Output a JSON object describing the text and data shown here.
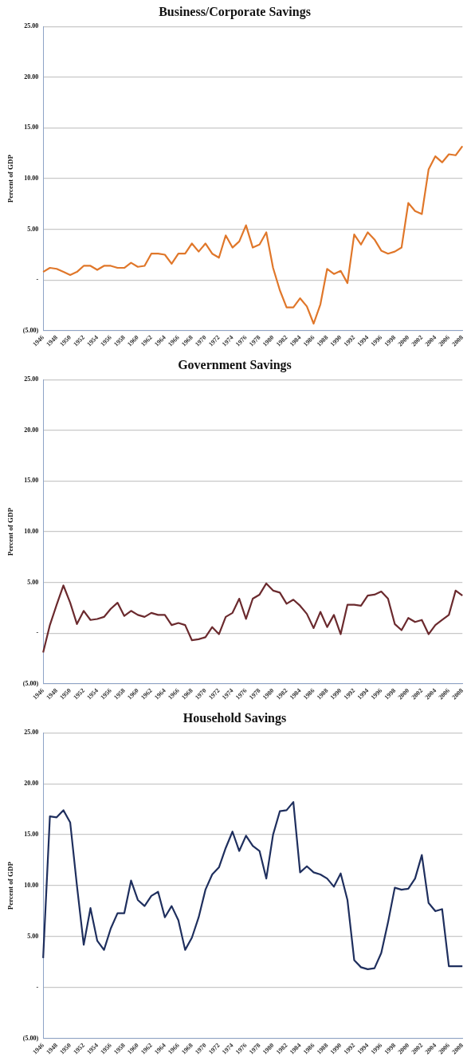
{
  "chart_data": [
    {
      "type": "line",
      "title": "Business/Corporate Savings",
      "ylabel": "Percent of GDP",
      "categories": [
        "1946",
        null,
        "1948",
        null,
        "1950",
        null,
        "1952",
        null,
        "1954",
        null,
        "1956",
        null,
        "1958",
        null,
        "1960",
        null,
        "1962",
        null,
        "1964",
        null,
        "1966",
        null,
        "1968",
        null,
        "1970",
        null,
        "1972",
        null,
        "1974",
        null,
        "1976",
        null,
        "1978",
        null,
        "1980",
        null,
        "1982",
        null,
        "1984",
        null,
        "1986",
        null,
        "1988",
        null,
        "1990",
        null,
        "1992",
        null,
        "1994",
        null,
        "1996",
        null,
        "1998",
        null,
        "2000",
        null,
        "2002",
        null,
        "2004",
        null,
        "2006",
        null,
        "2008"
      ],
      "series": [
        {
          "color": "#e0772a",
          "values": [
            0.8,
            1.2,
            1.1,
            0.8,
            0.5,
            0.8,
            1.4,
            1.4,
            1.0,
            1.4,
            1.4,
            1.2,
            1.2,
            1.7,
            1.3,
            1.4,
            2.6,
            2.6,
            2.5,
            1.6,
            2.6,
            2.6,
            3.6,
            2.8,
            3.6,
            2.6,
            2.2,
            4.4,
            3.2,
            3.8,
            5.4,
            3.2,
            3.5,
            4.7,
            1.2,
            -1.0,
            -2.7,
            -2.7,
            -1.8,
            -2.6,
            -4.3,
            -2.4,
            1.1,
            0.6,
            0.9,
            -0.3,
            4.5,
            3.5,
            4.7,
            4.0,
            2.9,
            2.6,
            2.8,
            3.2,
            7.6,
            6.8,
            6.5,
            10.9,
            12.2,
            11.6,
            12.4,
            12.3,
            13.2
          ]
        }
      ],
      "ylim": [
        -5,
        25
      ],
      "yticks": [
        {
          "value": -5,
          "label": "(5.00)"
        },
        {
          "value": 0,
          "label": "-"
        },
        {
          "value": 5,
          "label": "5.00"
        },
        {
          "value": 10,
          "label": "10.00"
        },
        {
          "value": 15,
          "label": "15.00"
        },
        {
          "value": 20,
          "label": "20.00"
        },
        {
          "value": 25,
          "label": "25.00"
        }
      ],
      "grid": "y",
      "legend": false,
      "marker": "none",
      "line_style": "solid"
    },
    {
      "type": "line",
      "title": "Government Savings",
      "ylabel": "Percent of GDP",
      "categories": [
        "1946",
        null,
        "1948",
        null,
        "1950",
        null,
        "1952",
        null,
        "1954",
        null,
        "1956",
        null,
        "1958",
        null,
        "1960",
        null,
        "1962",
        null,
        "1964",
        null,
        "1966",
        null,
        "1968",
        null,
        "1970",
        null,
        "1972",
        null,
        "1974",
        null,
        "1976",
        null,
        "1978",
        null,
        "1980",
        null,
        "1982",
        null,
        "1984",
        null,
        "1986",
        null,
        "1988",
        null,
        "1990",
        null,
        "1992",
        null,
        "1994",
        null,
        "1996",
        null,
        "1998",
        null,
        "2000",
        null,
        "2002",
        null,
        "2004",
        null,
        "2006",
        null,
        "2008"
      ],
      "series": [
        {
          "color": "#6b2a2e",
          "values": [
            -1.9,
            0.8,
            2.8,
            4.7,
            3.0,
            0.9,
            2.2,
            1.3,
            1.4,
            1.6,
            2.4,
            3.0,
            1.7,
            2.2,
            1.8,
            1.6,
            2.0,
            1.8,
            1.8,
            0.8,
            1.0,
            0.8,
            -0.7,
            -0.6,
            -0.4,
            0.6,
            -0.1,
            1.6,
            2.0,
            3.4,
            1.4,
            3.4,
            3.8,
            4.9,
            4.2,
            4.0,
            2.9,
            3.3,
            2.7,
            1.9,
            0.5,
            2.1,
            0.6,
            1.8,
            -0.1,
            2.8,
            2.8,
            2.7,
            3.7,
            3.8,
            4.1,
            3.4,
            0.9,
            0.3,
            1.5,
            1.1,
            1.3,
            -0.1,
            0.8,
            1.3,
            1.8,
            4.2,
            3.7
          ]
        }
      ],
      "ylim": [
        -5,
        25
      ],
      "yticks": [
        {
          "value": -5,
          "label": "(5.00)"
        },
        {
          "value": 0,
          "label": "-"
        },
        {
          "value": 5,
          "label": "5.00"
        },
        {
          "value": 10,
          "label": "10.00"
        },
        {
          "value": 15,
          "label": "15.00"
        },
        {
          "value": 20,
          "label": "20.00"
        },
        {
          "value": 25,
          "label": "25.00"
        }
      ],
      "grid": "y",
      "legend": false,
      "marker": "none",
      "line_style": "solid"
    },
    {
      "type": "line",
      "title": "Household Savings",
      "ylabel": "Percent of GDP",
      "categories": [
        "1946",
        null,
        "1948",
        null,
        "1950",
        null,
        "1952",
        null,
        "1954",
        null,
        "1956",
        null,
        "1958",
        null,
        "1960",
        null,
        "1962",
        null,
        "1964",
        null,
        "1966",
        null,
        "1968",
        null,
        "1970",
        null,
        "1972",
        null,
        "1974",
        null,
        "1976",
        null,
        "1978",
        null,
        "1980",
        null,
        "1982",
        null,
        "1984",
        null,
        "1986",
        null,
        "1988",
        null,
        "1990",
        null,
        "1992",
        null,
        "1994",
        null,
        "1996",
        null,
        "1998",
        null,
        "2000",
        null,
        "2002",
        null,
        "2004",
        null,
        "2006",
        null,
        "2008"
      ],
      "series": [
        {
          "color": "#1f2f5e",
          "values": [
            2.9,
            16.8,
            16.7,
            17.4,
            16.2,
            10.0,
            4.2,
            7.8,
            4.6,
            3.7,
            5.8,
            7.3,
            7.3,
            10.5,
            8.6,
            8.0,
            9.0,
            9.4,
            6.9,
            8.0,
            6.6,
            3.7,
            4.9,
            6.9,
            9.6,
            11.1,
            11.8,
            13.7,
            15.3,
            13.4,
            14.9,
            13.9,
            13.4,
            10.7,
            15.0,
            17.3,
            17.4,
            18.2,
            11.3,
            11.9,
            11.3,
            11.1,
            10.7,
            9.9,
            11.2,
            8.6,
            2.7,
            2.0,
            1.8,
            1.9,
            3.4,
            6.4,
            9.8,
            9.6,
            9.7,
            10.7,
            13.0,
            8.3,
            7.5,
            7.7,
            2.1,
            2.1,
            2.1
          ]
        }
      ],
      "ylim": [
        -5,
        25
      ],
      "yticks": [
        {
          "value": -5,
          "label": "(5.00)"
        },
        {
          "value": 0,
          "label": "-"
        },
        {
          "value": 5,
          "label": "5.00"
        },
        {
          "value": 10,
          "label": "10.00"
        },
        {
          "value": 15,
          "label": "15.00"
        },
        {
          "value": 20,
          "label": "20.00"
        },
        {
          "value": 25,
          "label": "25.00"
        }
      ],
      "grid": "y",
      "legend": false,
      "marker": "none",
      "line_style": "solid"
    }
  ]
}
